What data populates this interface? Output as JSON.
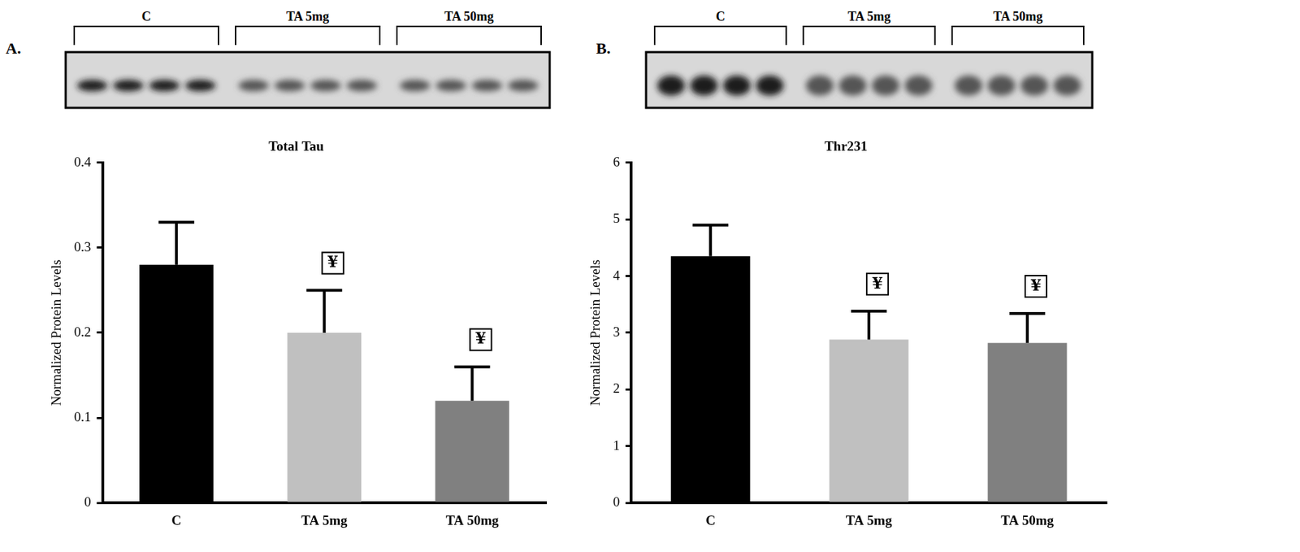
{
  "chart_data": [
    {
      "type": "bar",
      "panel_label": "A.",
      "title": "Total Tau",
      "y_label": "Normalized Protein Levels",
      "categories": [
        "C",
        "TA 5mg",
        "TA 50mg"
      ],
      "values": [
        0.28,
        0.2,
        0.12
      ],
      "errors": [
        0.05,
        0.05,
        0.04
      ],
      "colors": [
        "#000000",
        "#c0c0c0",
        "#808080"
      ],
      "ylim": [
        0,
        0.4
      ],
      "yticks": [
        0,
        0.1,
        0.2,
        0.3,
        0.4
      ],
      "grid": false,
      "annotations": [
        {
          "category": "TA 5mg",
          "text": "¥"
        },
        {
          "category": "TA 50mg",
          "text": "¥"
        }
      ],
      "blot": {
        "groups": [
          "C",
          "TA 5mg",
          "TA 50mg"
        ],
        "lanes": [
          4,
          4,
          4
        ]
      }
    },
    {
      "type": "bar",
      "panel_label": "B.",
      "title": "Thr231",
      "y_label": "Normalized Protein Levels",
      "categories": [
        "C",
        "TA 5mg",
        "TA 50mg"
      ],
      "values": [
        4.35,
        2.88,
        2.82
      ],
      "errors": [
        0.55,
        0.5,
        0.52
      ],
      "colors": [
        "#000000",
        "#c0c0c0",
        "#808080"
      ],
      "ylim": [
        0,
        6
      ],
      "yticks": [
        0,
        1,
        2,
        3,
        4,
        5,
        6
      ],
      "grid": false,
      "annotations": [
        {
          "category": "TA 5mg",
          "text": "¥"
        },
        {
          "category": "TA 50mg",
          "text": "¥"
        }
      ],
      "blot": {
        "groups": [
          "C",
          "TA 5mg",
          "TA 50mg"
        ],
        "lanes": [
          4,
          4,
          4
        ]
      }
    }
  ]
}
